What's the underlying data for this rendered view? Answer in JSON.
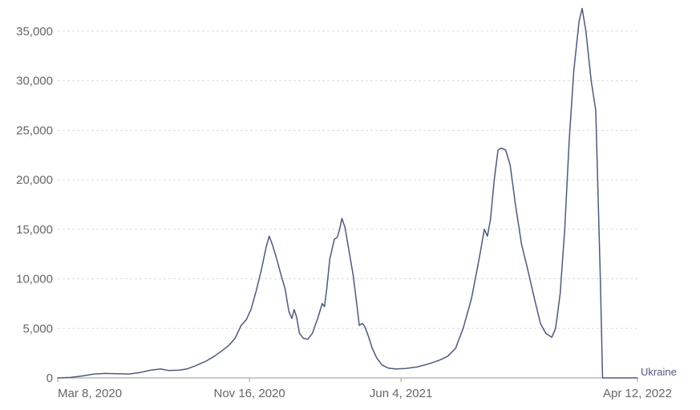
{
  "chart_data": {
    "type": "line",
    "title": "",
    "xlabel": "",
    "ylabel": "",
    "x_tick_labels": [
      "Mar 8, 2020",
      "Nov 16, 2020",
      "Jun 4, 2021",
      "Apr 12, 2022"
    ],
    "y_tick_labels": [
      "0",
      "5,000",
      "10,000",
      "15,000",
      "20,000",
      "25,000",
      "30,000",
      "35,000"
    ],
    "ylim": [
      0,
      37500
    ],
    "xlim": [
      "2020-03-08",
      "2022-04-12"
    ],
    "grid": true,
    "series": [
      {
        "name": "Ukraine",
        "color": "#4e5a7a",
        "points": [
          [
            "2020-03-08",
            0
          ],
          [
            "2020-03-25",
            50
          ],
          [
            "2020-04-10",
            200
          ],
          [
            "2020-04-25",
            400
          ],
          [
            "2020-05-10",
            450
          ],
          [
            "2020-05-25",
            430
          ],
          [
            "2020-06-10",
            400
          ],
          [
            "2020-06-25",
            550
          ],
          [
            "2020-07-10",
            800
          ],
          [
            "2020-07-22",
            900
          ],
          [
            "2020-08-01",
            750
          ],
          [
            "2020-08-15",
            780
          ],
          [
            "2020-08-25",
            900
          ],
          [
            "2020-09-05",
            1200
          ],
          [
            "2020-09-20",
            1700
          ],
          [
            "2020-10-01",
            2200
          ],
          [
            "2020-10-10",
            2700
          ],
          [
            "2020-10-20",
            3300
          ],
          [
            "2020-10-28",
            4000
          ],
          [
            "2020-11-05",
            5300
          ],
          [
            "2020-11-12",
            5900
          ],
          [
            "2020-11-18",
            6900
          ],
          [
            "2020-11-25",
            8800
          ],
          [
            "2020-12-02",
            11000
          ],
          [
            "2020-12-08",
            13200
          ],
          [
            "2020-12-12",
            14300
          ],
          [
            "2020-12-16",
            13500
          ],
          [
            "2020-12-22",
            12000
          ],
          [
            "2020-12-28",
            10300
          ],
          [
            "2021-01-02",
            9000
          ],
          [
            "2021-01-07",
            6700
          ],
          [
            "2021-01-11",
            6000
          ],
          [
            "2021-01-14",
            6900
          ],
          [
            "2021-01-17",
            6200
          ],
          [
            "2021-01-21",
            4500
          ],
          [
            "2021-01-26",
            4000
          ],
          [
            "2021-02-01",
            3900
          ],
          [
            "2021-02-07",
            4500
          ],
          [
            "2021-02-14",
            6000
          ],
          [
            "2021-02-20",
            7500
          ],
          [
            "2021-02-23",
            7200
          ],
          [
            "2021-02-26",
            9000
          ],
          [
            "2021-03-02",
            12000
          ],
          [
            "2021-03-08",
            14000
          ],
          [
            "2021-03-12",
            14200
          ],
          [
            "2021-03-15",
            15000
          ],
          [
            "2021-03-18",
            16100
          ],
          [
            "2021-03-22",
            15200
          ],
          [
            "2021-03-27",
            13000
          ],
          [
            "2021-04-02",
            10300
          ],
          [
            "2021-04-07",
            7200
          ],
          [
            "2021-04-10",
            5300
          ],
          [
            "2021-04-14",
            5500
          ],
          [
            "2021-04-17",
            5200
          ],
          [
            "2021-04-22",
            4200
          ],
          [
            "2021-04-27",
            3000
          ],
          [
            "2021-05-03",
            2000
          ],
          [
            "2021-05-10",
            1300
          ],
          [
            "2021-05-18",
            1000
          ],
          [
            "2021-05-28",
            900
          ],
          [
            "2021-06-10",
            950
          ],
          [
            "2021-06-25",
            1100
          ],
          [
            "2021-07-10",
            1400
          ],
          [
            "2021-07-25",
            1800
          ],
          [
            "2021-08-05",
            2200
          ],
          [
            "2021-08-15",
            3000
          ],
          [
            "2021-08-25",
            5000
          ],
          [
            "2021-09-05",
            8000
          ],
          [
            "2021-09-15",
            12000
          ],
          [
            "2021-09-22",
            15000
          ],
          [
            "2021-09-26",
            14300
          ],
          [
            "2021-09-30",
            16000
          ],
          [
            "2021-10-05",
            20000
          ],
          [
            "2021-10-10",
            23000
          ],
          [
            "2021-10-14",
            23200
          ],
          [
            "2021-10-20",
            23000
          ],
          [
            "2021-10-26",
            21500
          ],
          [
            "2021-11-02",
            17500
          ],
          [
            "2021-11-10",
            13500
          ],
          [
            "2021-11-18",
            11000
          ],
          [
            "2021-11-27",
            8000
          ],
          [
            "2021-12-05",
            5500
          ],
          [
            "2021-12-12",
            4500
          ],
          [
            "2021-12-20",
            4100
          ],
          [
            "2021-12-25",
            5000
          ],
          [
            "2021-12-31",
            8500
          ],
          [
            "2022-01-06",
            15000
          ],
          [
            "2022-01-12",
            24000
          ],
          [
            "2022-01-18",
            31000
          ],
          [
            "2022-01-25",
            36000
          ],
          [
            "2022-01-29",
            37300
          ],
          [
            "2022-02-03",
            35000
          ],
          [
            "2022-02-10",
            30000
          ],
          [
            "2022-02-16",
            27000
          ],
          [
            "2022-02-22",
            10000
          ],
          [
            "2022-02-25",
            0
          ],
          [
            "2022-04-12",
            0
          ]
        ]
      }
    ]
  }
}
